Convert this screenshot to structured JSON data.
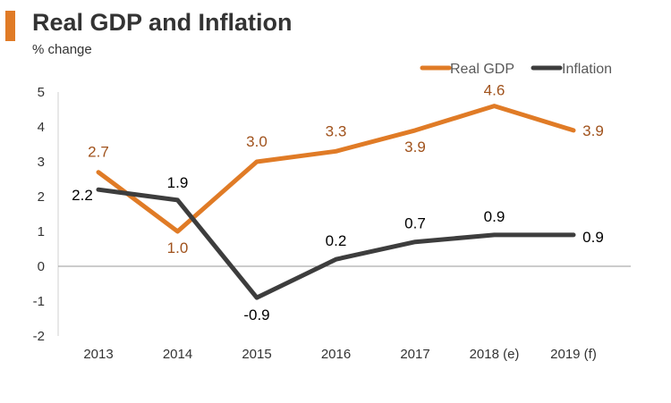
{
  "chart_data": {
    "type": "line",
    "title": "Real GDP and Inflation",
    "subtitle": "% change",
    "categories": [
      "2013",
      "2014",
      "2015",
      "2016",
      "2017",
      "2018 (e)",
      "2019 (f)"
    ],
    "ylim": [
      -2,
      5
    ],
    "yticks": [
      -2,
      -1,
      0,
      1,
      2,
      3,
      4,
      5
    ],
    "legend_position": "top-right",
    "series": [
      {
        "name": "Real GDP",
        "color": "#e07b26",
        "label_color": "#a0521c",
        "values": [
          2.7,
          1.0,
          3.0,
          3.3,
          3.9,
          4.6,
          3.9
        ],
        "labels": [
          "2.7",
          "1.0",
          "3.0",
          "3.3",
          "3.9",
          "4.6",
          "3.9"
        ]
      },
      {
        "name": "Inflation",
        "color": "#3d3d3d",
        "label_color": "#000000",
        "values": [
          2.2,
          1.9,
          -0.9,
          0.2,
          0.7,
          0.9,
          0.9
        ],
        "labels": [
          "2.2",
          "1.9",
          "-0.9",
          "0.2",
          "0.7",
          "0.9",
          "0.9"
        ]
      }
    ]
  }
}
